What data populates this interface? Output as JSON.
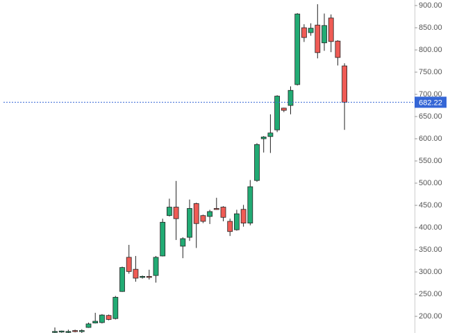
{
  "chart_data": {
    "type": "candlestick",
    "open": [
      164,
      165,
      166,
      168,
      167,
      175,
      185,
      186,
      202,
      195,
      256,
      333,
      306,
      288,
      290,
      292,
      336,
      427,
      446,
      358,
      378,
      454,
      427,
      425,
      443,
      446,
      414,
      395,
      441,
      410,
      506,
      600,
      605,
      620,
      669,
      675,
      722,
      850,
      839,
      856,
      816,
      872,
      820,
      764
    ],
    "high": [
      175,
      168,
      170,
      170,
      171,
      186,
      208,
      205,
      204,
      246,
      312,
      361,
      336,
      292,
      305,
      336,
      420,
      465,
      505,
      378,
      463,
      456,
      429,
      440,
      467,
      448,
      420,
      440,
      451,
      507,
      590,
      606,
      655,
      698,
      670,
      718,
      883,
      858,
      860,
      903,
      882,
      880,
      822,
      770
    ],
    "low": [
      160,
      163,
      162,
      164,
      162,
      174,
      184,
      184,
      191,
      193,
      255,
      296,
      278,
      285,
      283,
      276,
      335,
      425,
      372,
      331,
      370,
      354,
      410,
      408,
      440,
      414,
      381,
      393,
      402,
      405,
      503,
      569,
      568,
      615,
      660,
      655,
      720,
      818,
      832,
      781,
      798,
      795,
      765,
      620
    ],
    "close": [
      166,
      167,
      166,
      166,
      168,
      183,
      189,
      203,
      193,
      243,
      310,
      301,
      286,
      290,
      288,
      333,
      412,
      446,
      420,
      375,
      443,
      409,
      414,
      436,
      441,
      423,
      391,
      431,
      410,
      492,
      587,
      604,
      613,
      696,
      664,
      709,
      881,
      828,
      849,
      794,
      855,
      819,
      783,
      682.22
    ],
    "up_color": "#22ab74",
    "down_color": "#ef5b55",
    "ylim": [
      162.5,
      912.5
    ],
    "yticks": [
      {
        "value": 200,
        "label": "200.00"
      },
      {
        "value": 250,
        "label": "250.00"
      },
      {
        "value": 300,
        "label": "300.00"
      },
      {
        "value": 350,
        "label": "350.00"
      },
      {
        "value": 400,
        "label": "400.00"
      },
      {
        "value": 450,
        "label": "450.00"
      },
      {
        "value": 500,
        "label": "500.00"
      },
      {
        "value": 550,
        "label": "550.00"
      },
      {
        "value": 600,
        "label": "600.00"
      },
      {
        "value": 650,
        "label": "650.00"
      },
      {
        "value": 700,
        "label": "700.00"
      },
      {
        "value": 750,
        "label": "750.00"
      },
      {
        "value": 800,
        "label": "800.00"
      },
      {
        "value": 850,
        "label": "850.00"
      },
      {
        "value": 900,
        "label": "900.00"
      }
    ],
    "last_price": 682.22,
    "last_price_color": "#3466d6"
  }
}
